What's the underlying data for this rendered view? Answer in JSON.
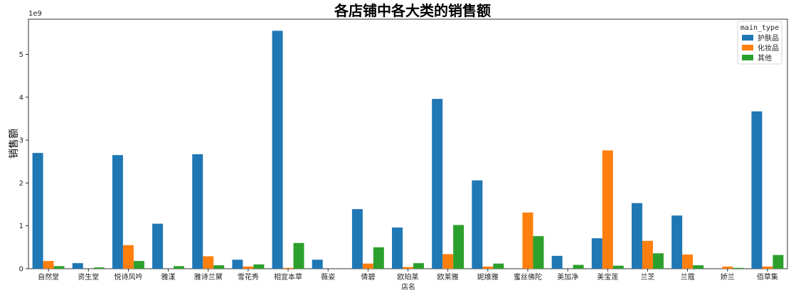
{
  "chart_data": {
    "type": "bar",
    "title": "各店铺中各大类的销售额",
    "xlabel": "店名",
    "ylabel": "销售额",
    "y_offset_label": "1e9",
    "ylim": [
      0,
      5.82
    ],
    "yticks": [
      0,
      1,
      2,
      3,
      4,
      5
    ],
    "y_scale_note": "values in units of 1e9",
    "legend_title": "main_type",
    "legend_position": "top-right",
    "categories": [
      "自然堂",
      "资生堂",
      "悦诗风吟",
      "雅漾",
      "雅诗兰黛",
      "雪花秀",
      "相宜本草",
      "薇姿",
      "倩碧",
      "欧珀莱",
      "欧莱雅",
      "妮维雅",
      "蜜丝佛陀",
      "美加净",
      "美宝莲",
      "兰芝",
      "兰蔻",
      "娇兰",
      "佰草集"
    ],
    "series": [
      {
        "name": "护肤品",
        "color": "#1f77b4",
        "values": [
          2.7,
          0.13,
          2.65,
          1.05,
          2.67,
          0.21,
          5.55,
          0.21,
          1.39,
          0.96,
          3.96,
          2.06,
          0,
          0.3,
          0.71,
          1.53,
          1.24,
          0,
          3.67
        ]
      },
      {
        "name": "化妆品",
        "color": "#ff7f0e",
        "values": [
          0.18,
          0,
          0.55,
          0,
          0.29,
          0.05,
          0.02,
          0,
          0.12,
          0.04,
          0.34,
          0.05,
          1.31,
          0,
          2.76,
          0.65,
          0.33,
          0.05,
          0.05
        ]
      },
      {
        "name": "其他",
        "color": "#2ca02c",
        "values": [
          0.06,
          0.03,
          0.18,
          0.06,
          0.08,
          0.1,
          0.6,
          0,
          0.5,
          0.13,
          1.02,
          0.12,
          0.76,
          0.09,
          0.07,
          0.36,
          0.08,
          0.02,
          0.32
        ]
      }
    ]
  }
}
